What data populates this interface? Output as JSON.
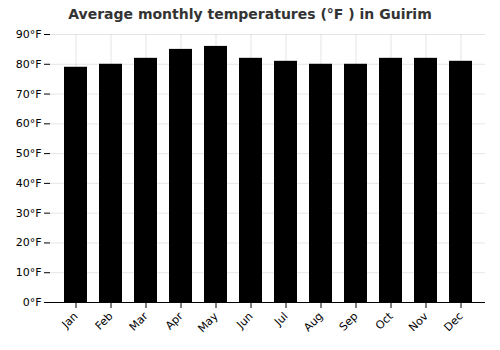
{
  "chart_data": {
    "type": "bar",
    "title": "Average monthly temperatures (°F ) in Guirim",
    "categories": [
      "Jan",
      "Feb",
      "Mar",
      "Apr",
      "May",
      "Jun",
      "Jul",
      "Aug",
      "Sep",
      "Oct",
      "Nov",
      "Dec"
    ],
    "values": [
      79,
      80,
      82,
      85,
      86,
      82,
      81,
      80,
      80,
      82,
      82,
      81
    ],
    "ylim": [
      0,
      90
    ],
    "yticks": [
      {
        "value": 0,
        "label": "0°F"
      },
      {
        "value": 10,
        "label": "10°F"
      },
      {
        "value": 20,
        "label": "20°F"
      },
      {
        "value": 30,
        "label": "30°F"
      },
      {
        "value": 40,
        "label": "40°F"
      },
      {
        "value": 50,
        "label": "50°F"
      },
      {
        "value": 60,
        "label": "60°F"
      },
      {
        "value": 70,
        "label": "70°F"
      },
      {
        "value": 80,
        "label": "80°F"
      },
      {
        "value": 90,
        "label": "90°F"
      }
    ],
    "grid": true
  }
}
